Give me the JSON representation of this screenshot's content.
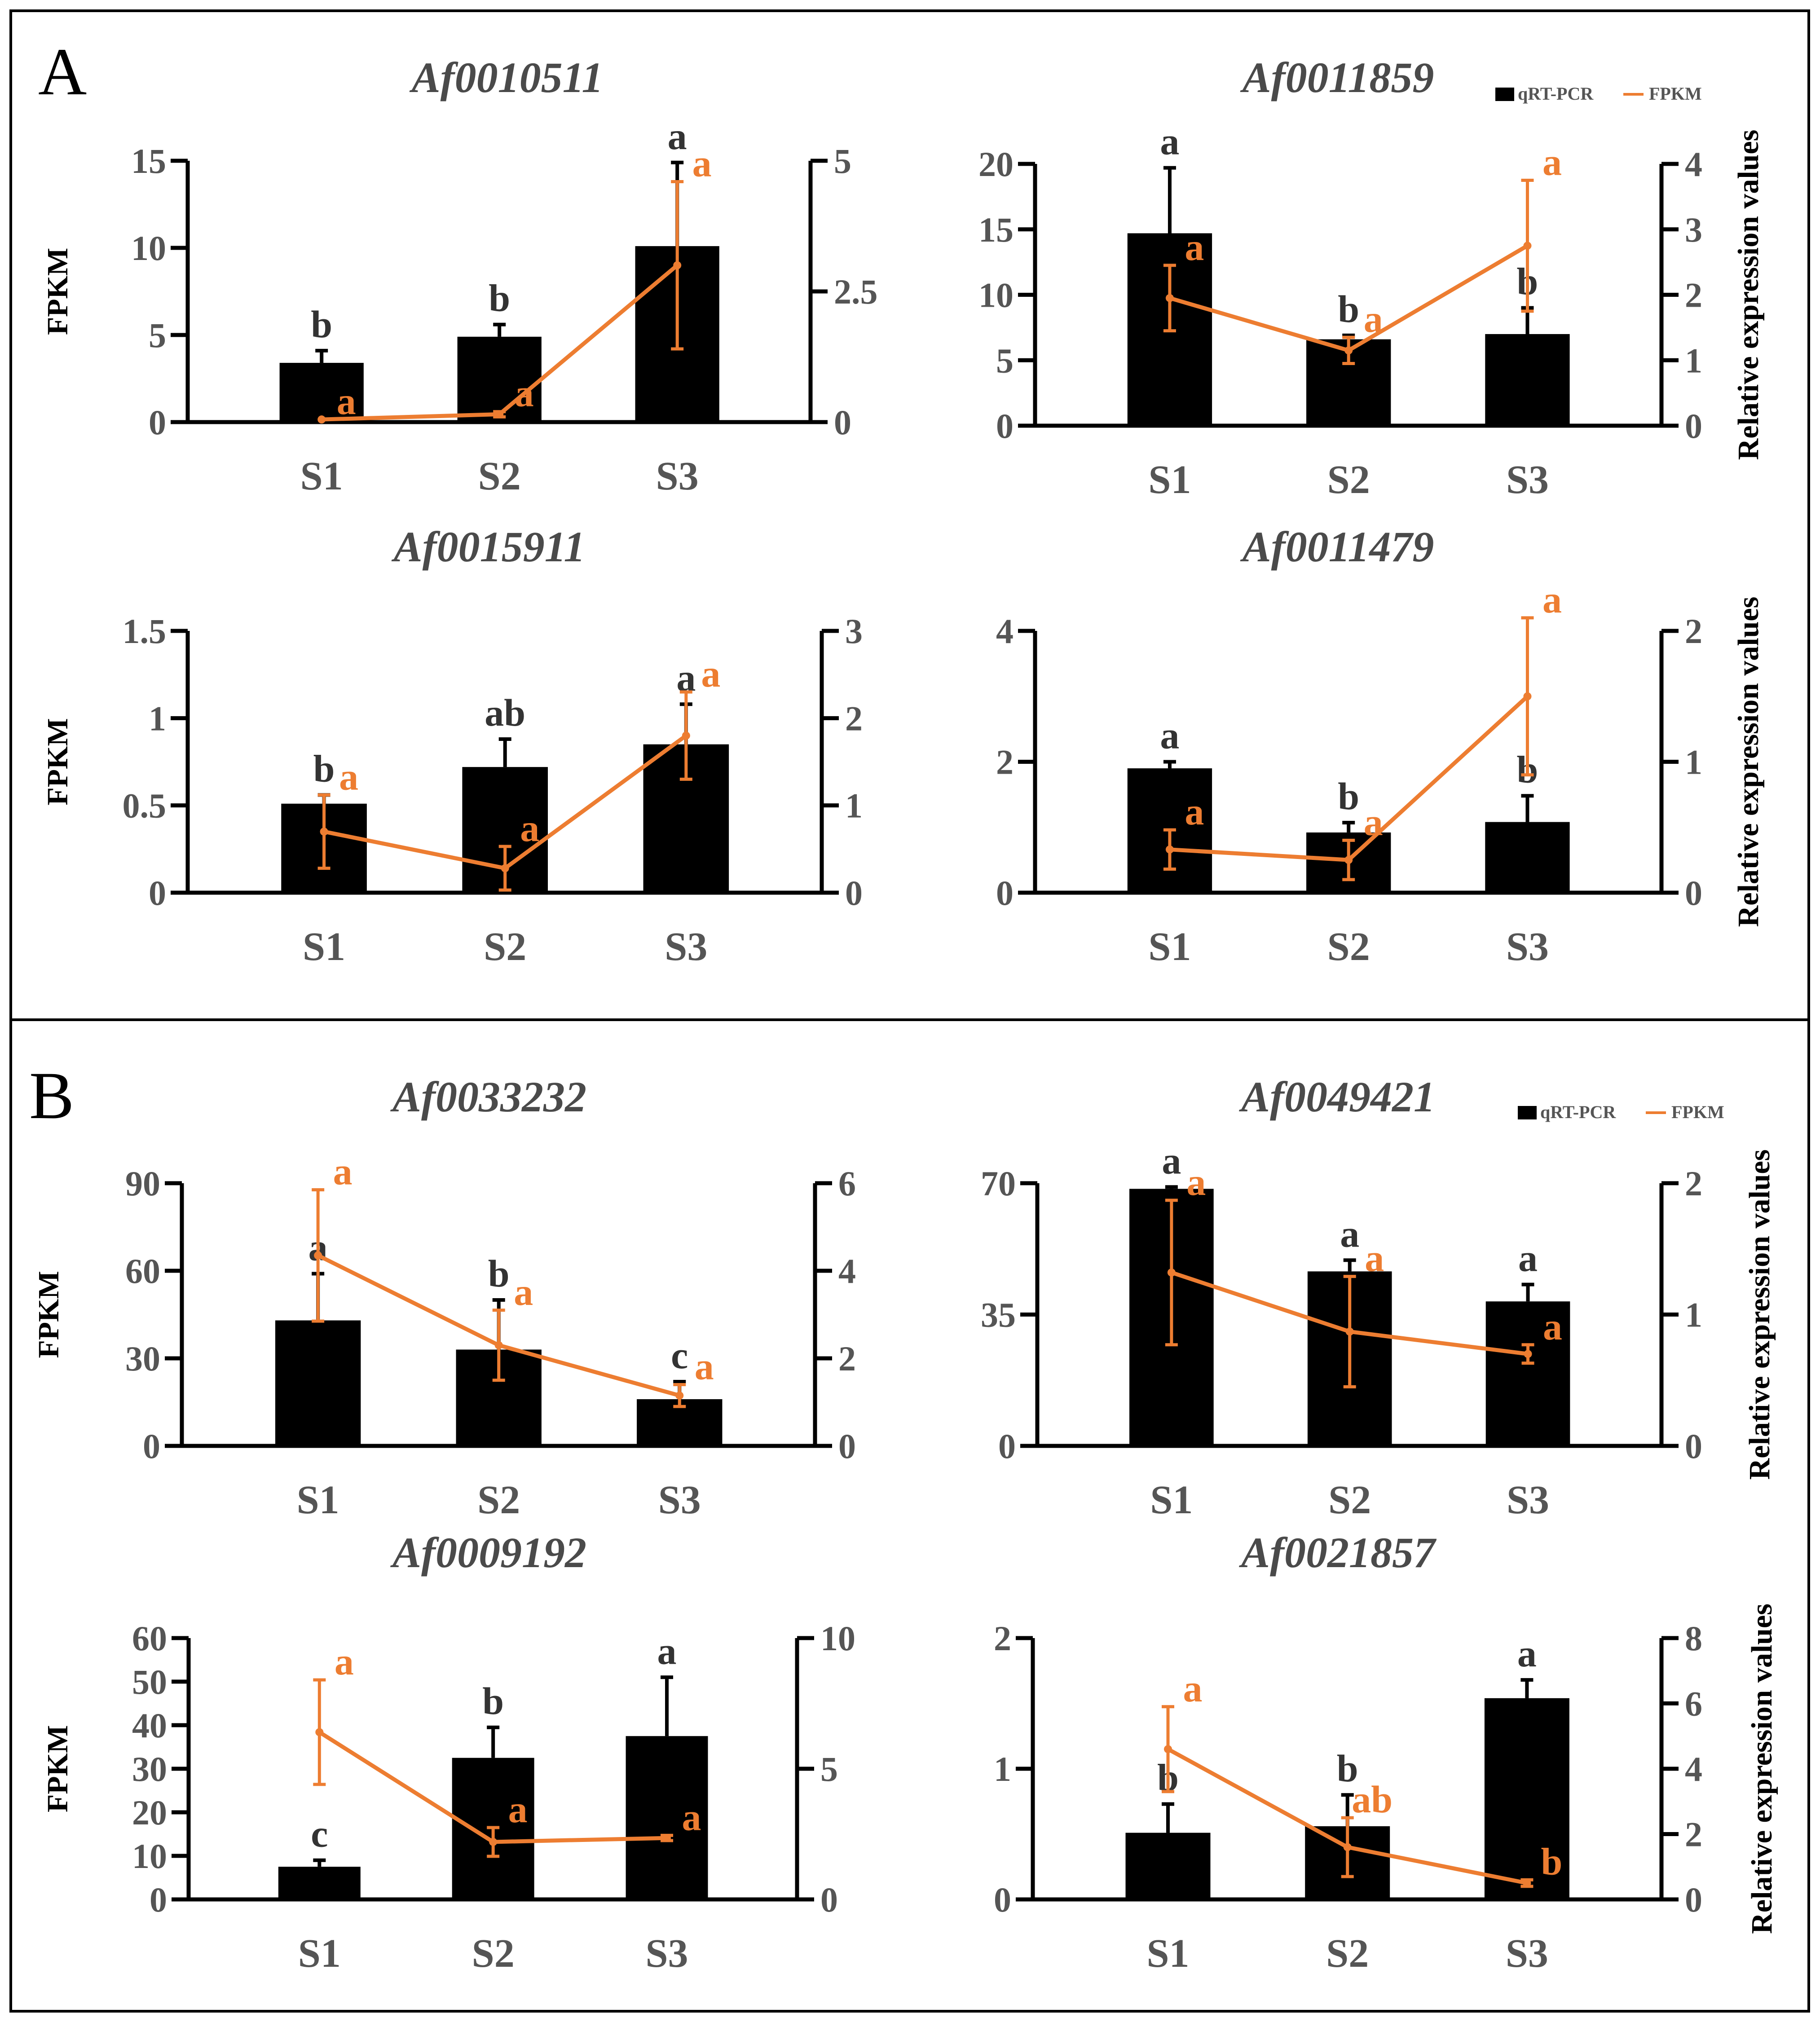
{
  "figure": {
    "panels": [
      {
        "letter": "A",
        "legend": {
          "bar_label": "qRT-PCR",
          "line_label": "FPKM"
        }
      },
      {
        "letter": "B",
        "legend": {
          "bar_label": "qRT-PCR",
          "line_label": "FPKM"
        }
      }
    ],
    "colors": {
      "bar": "#000000",
      "line": "#ED7D31",
      "frame": "#000000",
      "text": "#555555"
    }
  },
  "chart_data": [
    {
      "type": "bar+line",
      "panel": "A",
      "title": "Af0010511",
      "categories": [
        "S1",
        "S2",
        "S3"
      ],
      "ylabel_left": "FPKM",
      "ylabel_right": "",
      "ylim_left": [
        0,
        15
      ],
      "yticks_left": [
        0,
        5,
        10,
        15
      ],
      "ytick_labels_left": [
        "0",
        "5",
        "10",
        "15"
      ],
      "ylim_right": [
        0,
        5
      ],
      "yticks_right": [
        0,
        2.5,
        5
      ],
      "ytick_labels_right": [
        "0",
        "2.5",
        "5"
      ],
      "bars": {
        "name": "qRT-PCR (left axis)",
        "values": [
          3.4,
          4.9,
          10.1
        ],
        "errors": [
          0.7,
          0.7,
          4.8
        ],
        "labels": [
          "b",
          "b",
          "a"
        ]
      },
      "line": {
        "name": "FPKM (right axis)",
        "values": [
          0.05,
          0.15,
          3.0
        ],
        "errors": [
          0,
          0.05,
          1.6
        ],
        "labels": [
          "a",
          "a",
          "a"
        ]
      }
    },
    {
      "type": "bar+line",
      "panel": "A",
      "title": "Af0011859",
      "categories": [
        "S1",
        "S2",
        "S3"
      ],
      "ylabel_left": "",
      "ylabel_right": "Relative expression values",
      "ylim_left": [
        0,
        20
      ],
      "yticks_left": [
        0,
        5,
        10,
        15,
        20
      ],
      "ytick_labels_left": [
        "0",
        "5",
        "10",
        "15",
        "20"
      ],
      "ylim_right": [
        0,
        4
      ],
      "yticks_right": [
        0,
        1,
        2,
        3,
        4
      ],
      "ytick_labels_right": [
        "0",
        "1",
        "2",
        "3",
        "4"
      ],
      "bars": {
        "name": "qRT-PCR (left axis)",
        "values": [
          14.7,
          6.6,
          7.0
        ],
        "errors": [
          5.0,
          0.3,
          2.0
        ],
        "labels": [
          "a",
          "b",
          "b"
        ]
      },
      "line": {
        "name": "FPKM (right axis)",
        "values": [
          1.95,
          1.15,
          2.75
        ],
        "errors": [
          0.5,
          0.2,
          1.0
        ],
        "labels": [
          "a",
          "a",
          "a"
        ]
      }
    },
    {
      "type": "bar+line",
      "panel": "A",
      "title": "Af0015911",
      "categories": [
        "S1",
        "S2",
        "S3"
      ],
      "ylabel_left": "FPKM",
      "ylabel_right": "",
      "ylim_left": [
        0,
        1.5
      ],
      "yticks_left": [
        0,
        0.5,
        1,
        1.5
      ],
      "ytick_labels_left": [
        "0",
        "0.5",
        "1",
        "1.5"
      ],
      "ylim_right": [
        0,
        3
      ],
      "yticks_right": [
        0,
        1,
        2,
        3
      ],
      "ytick_labels_right": [
        "0",
        "1",
        "2",
        "3"
      ],
      "bars": {
        "name": "qRT-PCR (left axis)",
        "values": [
          0.51,
          0.72,
          0.85
        ],
        "errors": [
          0.05,
          0.16,
          0.23
        ],
        "labels": [
          "b",
          "ab",
          "a"
        ]
      },
      "line": {
        "name": "FPKM (right axis)",
        "values": [
          0.7,
          0.28,
          1.8
        ],
        "errors": [
          0.42,
          0.25,
          0.5
        ],
        "labels": [
          "a",
          "a",
          "a"
        ]
      }
    },
    {
      "type": "bar+line",
      "panel": "A",
      "title": "Af0011479",
      "categories": [
        "S1",
        "S2",
        "S3"
      ],
      "ylabel_left": "",
      "ylabel_right": "Relative expression values",
      "ylim_left": [
        0,
        4
      ],
      "yticks_left": [
        0,
        2,
        4
      ],
      "ytick_labels_left": [
        "0",
        "2",
        "4"
      ],
      "ylim_right": [
        0,
        2
      ],
      "yticks_right": [
        0,
        1,
        2
      ],
      "ytick_labels_right": [
        "0",
        "1",
        "2"
      ],
      "bars": {
        "name": "qRT-PCR (left axis)",
        "values": [
          1.9,
          0.92,
          1.08
        ],
        "errors": [
          0.1,
          0.15,
          0.4
        ],
        "labels": [
          "a",
          "b",
          "b"
        ]
      },
      "line": {
        "name": "FPKM (right axis)",
        "values": [
          0.33,
          0.25,
          1.5
        ],
        "errors": [
          0.15,
          0.15,
          0.6
        ],
        "labels": [
          "a",
          "a",
          "a"
        ]
      }
    },
    {
      "type": "bar+line",
      "panel": "B",
      "title": "Af0033232",
      "categories": [
        "S1",
        "S2",
        "S3"
      ],
      "ylabel_left": "FPKM",
      "ylabel_right": "",
      "ylim_left": [
        0,
        90
      ],
      "yticks_left": [
        0,
        30,
        60,
        90
      ],
      "ytick_labels_left": [
        "0",
        "30",
        "60",
        "90"
      ],
      "ylim_right": [
        0,
        6
      ],
      "yticks_right": [
        0,
        2,
        4,
        6
      ],
      "ytick_labels_right": [
        "0",
        "2",
        "4",
        "6"
      ],
      "bars": {
        "name": "qRT-PCR (left axis)",
        "values": [
          43,
          33,
          16
        ],
        "errors": [
          16,
          17,
          6
        ],
        "labels": [
          "a",
          "b",
          "c"
        ]
      },
      "line": {
        "name": "FPKM (right axis)",
        "values": [
          4.35,
          2.3,
          1.15
        ],
        "errors": [
          1.5,
          0.8,
          0.25
        ],
        "labels": [
          "a",
          "a",
          "a"
        ]
      }
    },
    {
      "type": "bar+line",
      "panel": "B",
      "title": "Af0049421",
      "categories": [
        "S1",
        "S2",
        "S3"
      ],
      "ylabel_left": "",
      "ylabel_right": "Relative expression values",
      "ylim_left": [
        0,
        70
      ],
      "yticks_left": [
        0,
        35,
        70
      ],
      "ytick_labels_left": [
        "0",
        "35",
        "70"
      ],
      "ylim_right": [
        0,
        2
      ],
      "yticks_right": [
        0,
        1,
        2
      ],
      "ytick_labels_right": [
        "0",
        "1",
        "2"
      ],
      "bars": {
        "name": "qRT-PCR (left axis)",
        "values": [
          68.5,
          46.5,
          38.5
        ],
        "errors": [
          0.5,
          3.0,
          4.5
        ],
        "labels": [
          "a",
          "a",
          "a"
        ]
      },
      "line": {
        "name": "FPKM (right axis)",
        "values": [
          1.32,
          0.87,
          0.7
        ],
        "errors": [
          0.55,
          0.42,
          0.07
        ],
        "labels": [
          "a",
          "a",
          "a"
        ]
      }
    },
    {
      "type": "bar+line",
      "panel": "B",
      "title": "Af0009192",
      "categories": [
        "S1",
        "S2",
        "S3"
      ],
      "ylabel_left": "FPKM",
      "ylabel_right": "",
      "ylim_left": [
        0,
        60
      ],
      "yticks_left": [
        0,
        10,
        20,
        30,
        40,
        50,
        60
      ],
      "ytick_labels_left": [
        "0",
        "10",
        "20",
        "30",
        "40",
        "50",
        "60"
      ],
      "ylim_right": [
        0,
        10
      ],
      "yticks_right": [
        0,
        5,
        10
      ],
      "ytick_labels_right": [
        "0",
        "5",
        "10"
      ],
      "bars": {
        "name": "qRT-PCR (left axis)",
        "values": [
          7.5,
          32.5,
          37.5
        ],
        "errors": [
          1.5,
          7,
          13.5
        ],
        "labels": [
          "c",
          "b",
          "a"
        ]
      },
      "line": {
        "name": "FPKM (right axis)",
        "values": [
          6.4,
          2.2,
          2.35
        ],
        "errors": [
          2.0,
          0.55,
          0.1
        ],
        "labels": [
          "a",
          "a",
          "a"
        ]
      }
    },
    {
      "type": "bar+line",
      "panel": "B",
      "title": "Af0021857",
      "categories": [
        "S1",
        "S2",
        "S3"
      ],
      "ylabel_left": "",
      "ylabel_right": "Relative expression values",
      "ylim_left": [
        0,
        2
      ],
      "yticks_left": [
        0,
        1,
        2
      ],
      "ytick_labels_left": [
        "0",
        "1",
        "2"
      ],
      "ylim_right": [
        0,
        8
      ],
      "yticks_right": [
        0,
        2,
        4,
        6,
        8
      ],
      "ytick_labels_right": [
        "0",
        "2",
        "4",
        "6",
        "8"
      ],
      "bars": {
        "name": "qRT-PCR (left axis)",
        "values": [
          0.51,
          0.56,
          1.54
        ],
        "errors": [
          0.22,
          0.24,
          0.14
        ],
        "labels": [
          "b",
          "b",
          "a"
        ]
      },
      "line": {
        "name": "FPKM (right axis)",
        "values": [
          4.6,
          1.6,
          0.5
        ],
        "errors": [
          1.3,
          0.9,
          0.1
        ],
        "labels": [
          "a",
          "ab",
          "b"
        ]
      }
    }
  ]
}
